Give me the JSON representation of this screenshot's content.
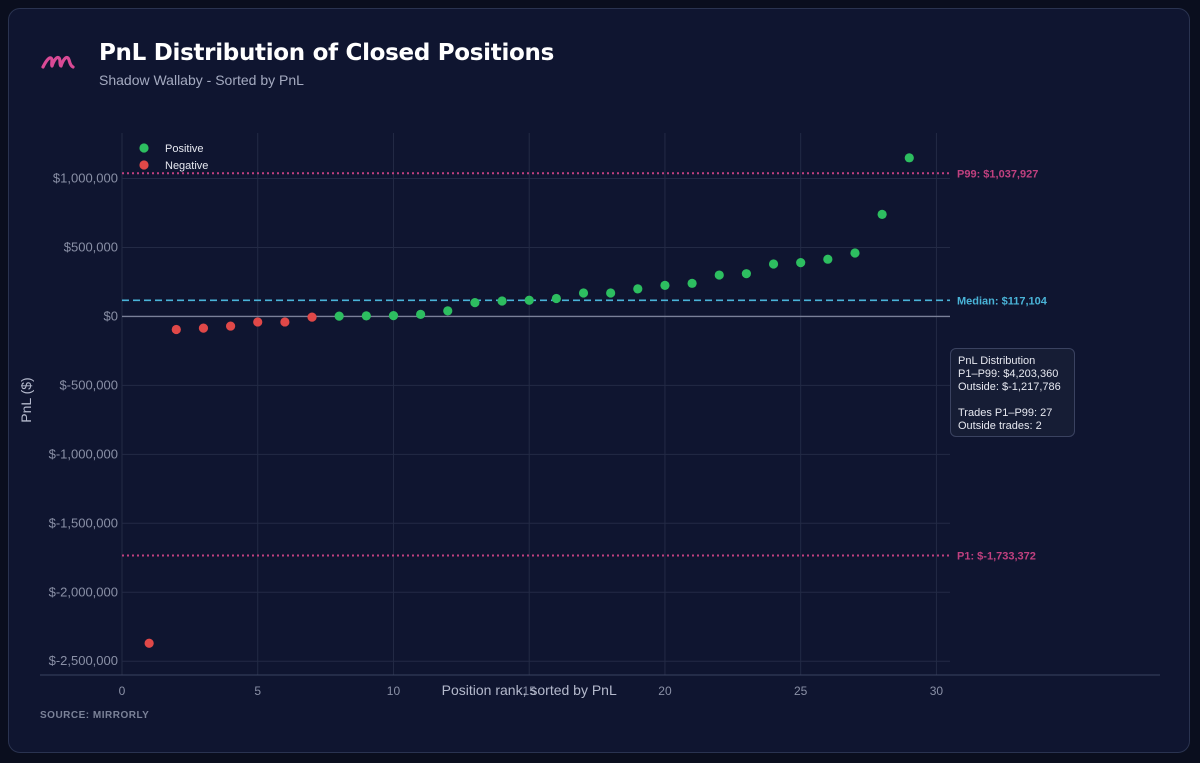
{
  "header": {
    "title": "PnL Distribution of Closed Positions",
    "subtitle": "Shadow Wallaby - Sorted by PnL",
    "logo_icon": "mirrorly-logo-icon"
  },
  "footer": {
    "source": "SOURCE: MIRRORLY"
  },
  "info_box": {
    "title": "PnL Distribution",
    "range_pnl": "P1–P99: $4,203,360",
    "outside_pnl": "Outside: $-1,217,786",
    "range_trades": "Trades P1–P99: 27",
    "outside_trades": "Outside trades: 2"
  },
  "colors": {
    "positive": "#2dbe60",
    "negative": "#e04848",
    "percentile": "#c0407f",
    "median": "#4ab4d8",
    "grid": "#232a45",
    "zero_line": "#7a8098",
    "tick_text": "#8a90a6",
    "background": "#0f1530"
  },
  "chart_data": {
    "type": "scatter",
    "xlabel": "Position rank, sorted by PnL",
    "ylabel": "PnL ($)",
    "xlim": [
      0,
      30.5
    ],
    "ylim": [
      -2600000,
      1330000
    ],
    "x_ticks": [
      0,
      5,
      10,
      15,
      20,
      25,
      30
    ],
    "y_ticks": [
      1000000,
      500000,
      0,
      -500000,
      -1000000,
      -1500000,
      -2000000,
      -2500000
    ],
    "y_tick_labels": [
      "$1,000,000",
      "$500,000",
      "$0",
      "$-500,000",
      "$-1,000,000",
      "$-1,500,000",
      "$-2,000,000",
      "$-2,500,000"
    ],
    "grid": true,
    "legend_position": "top-left",
    "series": [
      {
        "name": "Positive",
        "x": [
          8,
          9,
          10,
          11,
          12,
          13,
          14,
          15,
          16,
          17,
          18,
          19,
          20,
          21,
          22,
          23,
          24,
          25,
          26,
          27,
          28,
          29
        ],
        "y": [
          2000,
          4000,
          6000,
          15000,
          40000,
          100000,
          112000,
          117104,
          130000,
          170000,
          170000,
          200000,
          225000,
          240000,
          300000,
          310000,
          380000,
          390000,
          415000,
          460000,
          740000,
          1150000
        ]
      },
      {
        "name": "Negative",
        "x": [
          1,
          2,
          3,
          4,
          5,
          6,
          7
        ],
        "y": [
          -2370000,
          -95000,
          -85000,
          -70000,
          -40000,
          -40000,
          -5000
        ]
      }
    ],
    "reference_lines": [
      {
        "kind": "P99",
        "value": 1037927,
        "label": "P99: $1,037,927"
      },
      {
        "kind": "Median",
        "value": 117104,
        "label": "Median: $117,104"
      },
      {
        "kind": "P1",
        "value": -1733372,
        "label": "P1: $-1,733,372"
      }
    ]
  }
}
